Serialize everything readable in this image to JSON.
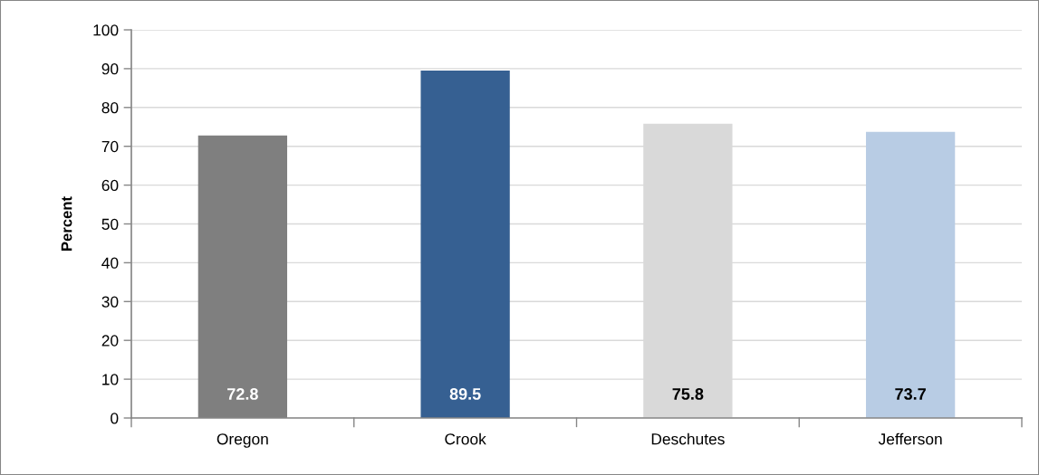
{
  "chart_data": {
    "type": "bar",
    "ylabel": "Percent",
    "categories": [
      "Oregon",
      "Crook",
      "Deschutes",
      "Jefferson"
    ],
    "values": [
      72.8,
      89.5,
      75.8,
      73.7
    ],
    "colors": [
      "#7f7f7f",
      "#366092",
      "#d9d9d9",
      "#b8cce4"
    ],
    "ylim": [
      0,
      100
    ],
    "yticks": [
      0,
      10,
      20,
      30,
      40,
      50,
      60,
      70,
      80,
      90,
      100
    ],
    "grid": "y",
    "data_labels": true
  }
}
